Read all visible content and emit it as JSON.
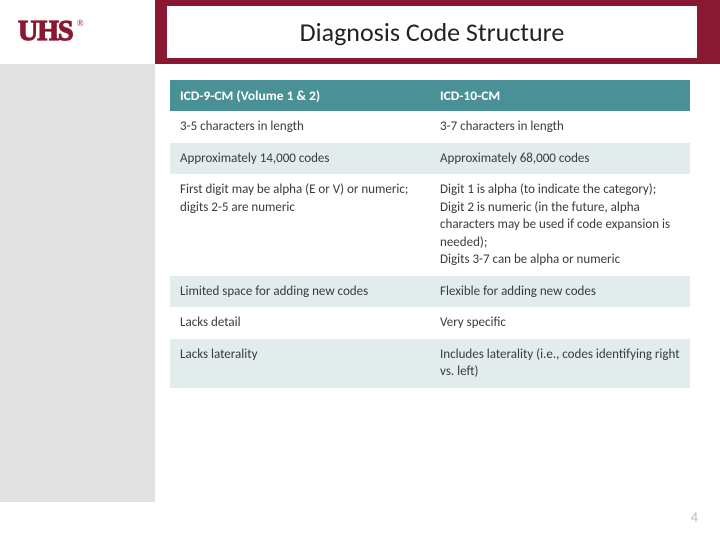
{
  "logo_text": "UHS",
  "title": "Diagnosis Code Structure",
  "page_number": "4",
  "table": {
    "header_bg": "#4a9097",
    "header_fg": "#ffffff",
    "row_even_bg": "#e2ecec",
    "row_odd_bg": "#ffffff",
    "text_color": "#3a3a3a",
    "font_size": 13,
    "columns": [
      "ICD-9-CM (Volume 1 & 2)",
      "ICD-10-CM"
    ],
    "rows": [
      [
        "3-5 characters in length",
        "3-7 characters in length"
      ],
      [
        "Approximately 14,000 codes",
        "Approximately 68,000 codes"
      ],
      [
        "First digit may be alpha (E or V) or numeric; digits 2-5 are numeric",
        "Digit 1 is alpha (to indicate the category);\nDigit 2 is numeric (in the future, alpha characters may be used if code expansion is needed);\nDigits 3-7 can be alpha or numeric"
      ],
      [
        "Limited space for adding new codes",
        "Flexible for adding new codes"
      ],
      [
        "Lacks detail",
        "Very specific"
      ],
      [
        "Lacks laterality",
        "Includes laterality (i.e., codes identifying right vs. left)"
      ]
    ]
  },
  "colors": {
    "brand": "#8a1832",
    "sidebar_bg": "#e3e2e2",
    "page_bg": "#ffffff"
  }
}
